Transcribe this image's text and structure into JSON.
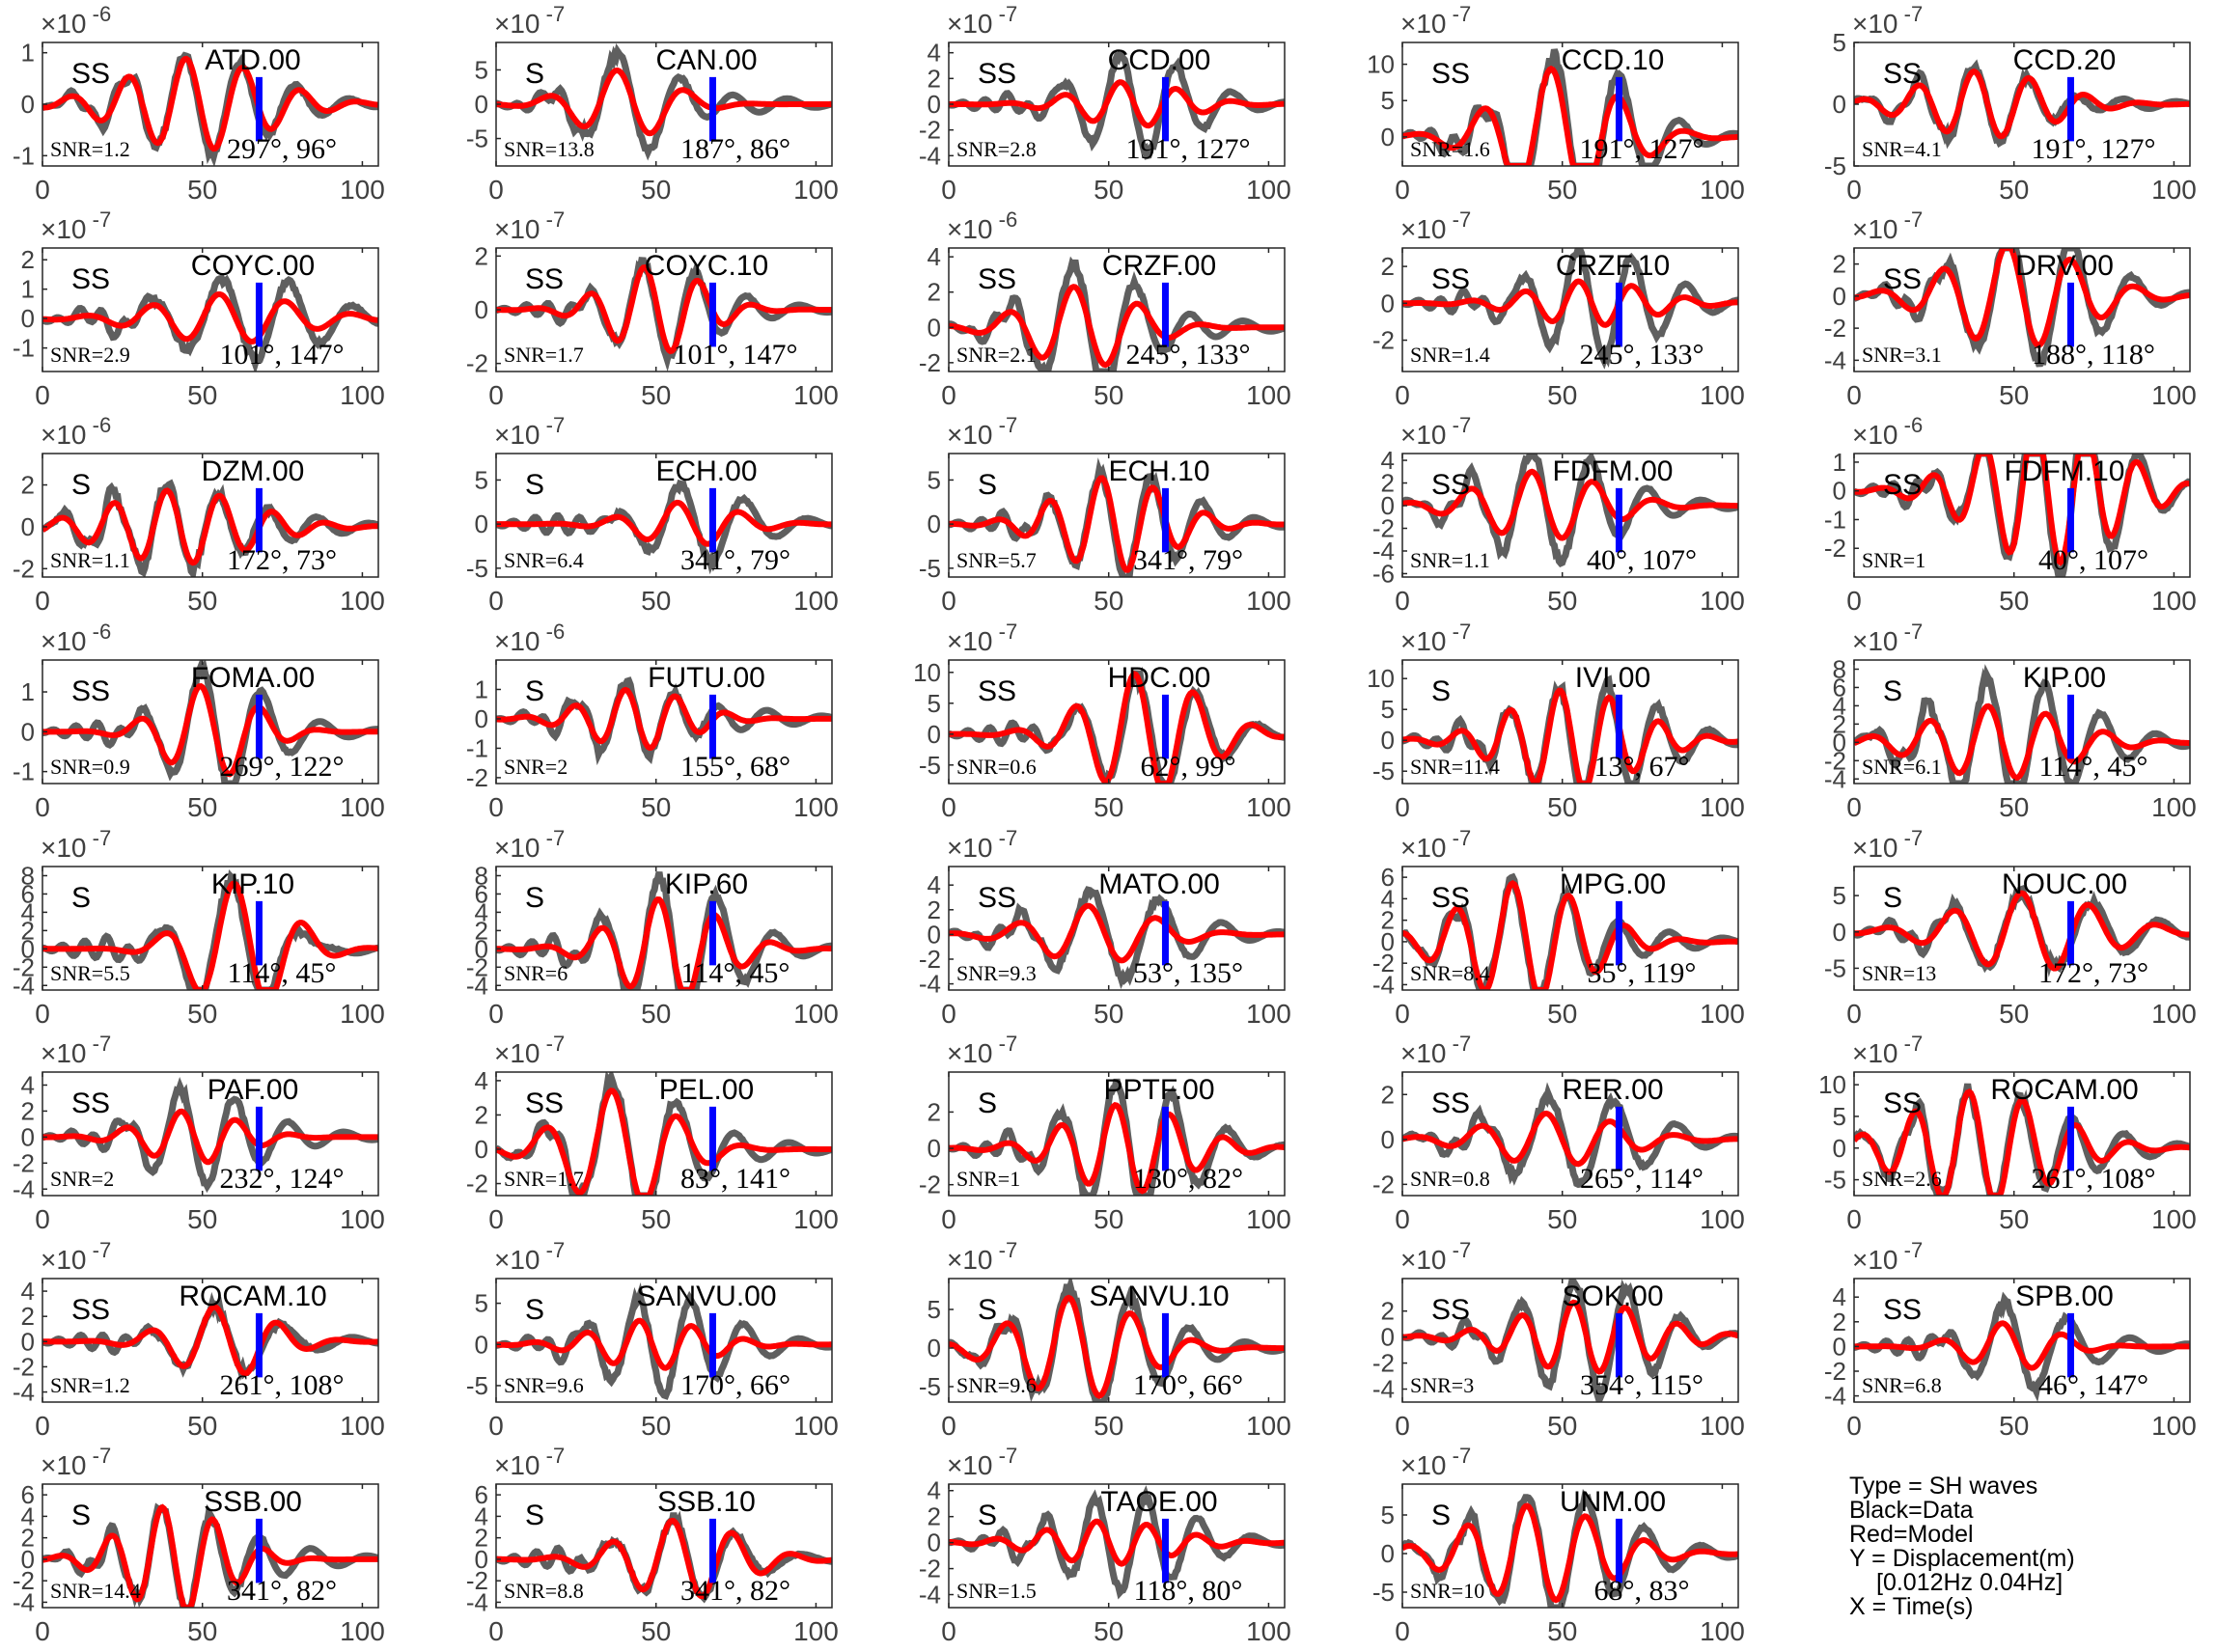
{
  "legend": {
    "type": "Type = SH waves",
    "black": "Black=Data",
    "red": "Red=Model",
    "y_label": "Y = Displacement(m)",
    "band": "[0.012Hz 0.04Hz]",
    "x_label": "X = Time(s)"
  },
  "colors": {
    "data": "#5f5f5f",
    "model": "#ff0000",
    "marker": "#0000ff",
    "axis": "#262626",
    "tick_label": "#404040"
  },
  "chart_data": [
    {
      "type": "line",
      "station": "ATD.00",
      "phase": "SS",
      "snr": "SNR=1.2",
      "az_dist": "297°, 96°",
      "exp": "-6",
      "ylim": [
        -1.2,
        1.2
      ],
      "yticks": [
        -1,
        0,
        1
      ]
    },
    {
      "type": "line",
      "station": "CAN.00",
      "phase": "S",
      "snr": "SNR=13.8",
      "az_dist": "187°, 86°",
      "exp": "-7",
      "ylim": [
        -9,
        9
      ],
      "yticks": [
        -5,
        0,
        5
      ]
    },
    {
      "type": "line",
      "station": "CCD.00",
      "phase": "SS",
      "snr": "SNR=2.8",
      "az_dist": "191°, 127°",
      "exp": "-7",
      "ylim": [
        -4.8,
        4.8
      ],
      "yticks": [
        -4,
        -2,
        0,
        2,
        4
      ]
    },
    {
      "type": "line",
      "station": "CCD.10",
      "phase": "SS",
      "snr": "SNR=1.6",
      "az_dist": "191°, 127°",
      "exp": "-7",
      "ylim": [
        -4,
        13
      ],
      "yticks": [
        0,
        5,
        10
      ]
    },
    {
      "type": "line",
      "station": "CCD.20",
      "phase": "SS",
      "snr": "SNR=4.1",
      "az_dist": "191°, 127°",
      "exp": "-7",
      "ylim": [
        -5,
        5
      ],
      "yticks": [
        -5,
        0,
        5
      ]
    },
    {
      "type": "line",
      "station": "COYC.00",
      "phase": "SS",
      "snr": "SNR=2.9",
      "az_dist": "101°, 147°",
      "exp": "-7",
      "ylim": [
        -1.8,
        2.4
      ],
      "yticks": [
        -1,
        0,
        1,
        2
      ]
    },
    {
      "type": "line",
      "station": "COYC.10",
      "phase": "SS",
      "snr": "SNR=1.7",
      "az_dist": "101°, 147°",
      "exp": "-7",
      "ylim": [
        -2.3,
        2.3
      ],
      "yticks": [
        -2,
        0,
        2
      ]
    },
    {
      "type": "line",
      "station": "CRZF.00",
      "phase": "SS",
      "snr": "SNR=2.1",
      "az_dist": "245°, 133°",
      "exp": "-6",
      "ylim": [
        -2.5,
        4.5
      ],
      "yticks": [
        -2,
        0,
        2,
        4
      ]
    },
    {
      "type": "line",
      "station": "CRZF.10",
      "phase": "SS",
      "snr": "SNR=1.4",
      "az_dist": "245°, 133°",
      "exp": "-7",
      "ylim": [
        -3.7,
        3
      ],
      "yticks": [
        -2,
        0,
        2
      ]
    },
    {
      "type": "line",
      "station": "DRV.00",
      "phase": "SS",
      "snr": "SNR=3.1",
      "az_dist": "188°, 118°",
      "exp": "-7",
      "ylim": [
        -4.7,
        3
      ],
      "yticks": [
        -4,
        -2,
        0,
        2
      ]
    },
    {
      "type": "line",
      "station": "DZM.00",
      "phase": "S",
      "snr": "SNR=1.1",
      "az_dist": "172°, 73°",
      "exp": "-6",
      "ylim": [
        -2.4,
        3.5
      ],
      "yticks": [
        -2,
        0,
        2
      ]
    },
    {
      "type": "line",
      "station": "ECH.00",
      "phase": "S",
      "snr": "SNR=6.4",
      "az_dist": "341°, 79°",
      "exp": "-7",
      "ylim": [
        -6,
        8
      ],
      "yticks": [
        -5,
        0,
        5
      ]
    },
    {
      "type": "line",
      "station": "ECH.10",
      "phase": "S",
      "snr": "SNR=5.7",
      "az_dist": "341°, 79°",
      "exp": "-7",
      "ylim": [
        -6,
        8
      ],
      "yticks": [
        -5,
        0,
        5
      ]
    },
    {
      "type": "line",
      "station": "FDFM.00",
      "phase": "SS",
      "snr": "SNR=1.1",
      "az_dist": "40°, 107°",
      "exp": "-7",
      "ylim": [
        -6.3,
        4.6
      ],
      "yticks": [
        -6,
        -4,
        -2,
        0,
        2,
        4
      ]
    },
    {
      "type": "line",
      "station": "FDFM.10",
      "phase": "SS",
      "snr": "SNR=1",
      "az_dist": "40°, 107°",
      "exp": "-6",
      "ylim": [
        -3,
        1.3
      ],
      "yticks": [
        -2,
        -1,
        0,
        1
      ]
    },
    {
      "type": "line",
      "station": "FOMA.00",
      "phase": "SS",
      "snr": "SNR=0.9",
      "az_dist": "269°, 122°",
      "exp": "-6",
      "ylim": [
        -1.3,
        1.8
      ],
      "yticks": [
        -1,
        0,
        1
      ]
    },
    {
      "type": "line",
      "station": "FUTU.00",
      "phase": "S",
      "snr": "SNR=2",
      "az_dist": "155°, 68°",
      "exp": "-6",
      "ylim": [
        -2.2,
        2
      ],
      "yticks": [
        -2,
        -1,
        0,
        1
      ]
    },
    {
      "type": "line",
      "station": "HDC.00",
      "phase": "SS",
      "snr": "SNR=0.6",
      "az_dist": "62°, 99°",
      "exp": "-7",
      "ylim": [
        -8,
        12
      ],
      "yticks": [
        -5,
        0,
        5,
        10
      ]
    },
    {
      "type": "line",
      "station": "IVI.00",
      "phase": "S",
      "snr": "SNR=11.4",
      "az_dist": "13°, 67°",
      "exp": "-7",
      "ylim": [
        -7,
        13
      ],
      "yticks": [
        -5,
        0,
        5,
        10
      ]
    },
    {
      "type": "line",
      "station": "KIP.00",
      "phase": "S",
      "snr": "SNR=6.1",
      "az_dist": "114°, 45°",
      "exp": "-7",
      "ylim": [
        -4.5,
        9
      ],
      "yticks": [
        -4,
        -2,
        0,
        2,
        4,
        6,
        8
      ]
    },
    {
      "type": "line",
      "station": "KIP.10",
      "phase": "S",
      "snr": "SNR=5.5",
      "az_dist": "114°, 45°",
      "exp": "-7",
      "ylim": [
        -4.5,
        9
      ],
      "yticks": [
        -4,
        -2,
        0,
        2,
        4,
        6,
        8
      ]
    },
    {
      "type": "line",
      "station": "KIP.60",
      "phase": "S",
      "snr": "SNR=6",
      "az_dist": "114°, 45°",
      "exp": "-7",
      "ylim": [
        -4.5,
        9
      ],
      "yticks": [
        -4,
        -2,
        0,
        2,
        4,
        6,
        8
      ]
    },
    {
      "type": "line",
      "station": "MATO.00",
      "phase": "SS",
      "snr": "SNR=9.3",
      "az_dist": "53°, 135°",
      "exp": "-7",
      "ylim": [
        -4.5,
        5.5
      ],
      "yticks": [
        -4,
        -2,
        0,
        2,
        4
      ]
    },
    {
      "type": "line",
      "station": "MPG.00",
      "phase": "SS",
      "snr": "SNR=8.4",
      "az_dist": "35°, 119°",
      "exp": "-7",
      "ylim": [
        -4.5,
        7
      ],
      "yticks": [
        -4,
        -2,
        0,
        2,
        4,
        6
      ]
    },
    {
      "type": "line",
      "station": "NOUC.00",
      "phase": "S",
      "snr": "SNR=13",
      "az_dist": "172°, 73°",
      "exp": "-7",
      "ylim": [
        -8,
        9
      ],
      "yticks": [
        -5,
        0,
        5
      ]
    },
    {
      "type": "line",
      "station": "PAF.00",
      "phase": "SS",
      "snr": "SNR=2",
      "az_dist": "232°, 124°",
      "exp": "-7",
      "ylim": [
        -4.5,
        5
      ],
      "yticks": [
        -4,
        -2,
        0,
        2,
        4
      ]
    },
    {
      "type": "line",
      "station": "PEL.00",
      "phase": "SS",
      "snr": "SNR=1.7",
      "az_dist": "83°, 141°",
      "exp": "-7",
      "ylim": [
        -2.7,
        4.5
      ],
      "yticks": [
        -2,
        0,
        2,
        4
      ]
    },
    {
      "type": "line",
      "station": "PPTF.00",
      "phase": "S",
      "snr": "SNR=1",
      "az_dist": "130°, 82°",
      "exp": "-7",
      "ylim": [
        -2.6,
        4.2
      ],
      "yticks": [
        -2,
        0,
        2
      ]
    },
    {
      "type": "line",
      "station": "RER.00",
      "phase": "SS",
      "snr": "SNR=0.8",
      "az_dist": "265°, 114°",
      "exp": "-7",
      "ylim": [
        -2.5,
        3
      ],
      "yticks": [
        -2,
        0,
        2
      ]
    },
    {
      "type": "line",
      "station": "ROCAM.00",
      "phase": "SS",
      "snr": "SNR=2.6",
      "az_dist": "261°, 108°",
      "exp": "-7",
      "ylim": [
        -7.5,
        12
      ],
      "yticks": [
        -5,
        0,
        5,
        10
      ]
    },
    {
      "type": "line",
      "station": "ROCAM.10",
      "phase": "SS",
      "snr": "SNR=1.2",
      "az_dist": "261°, 108°",
      "exp": "-7",
      "ylim": [
        -4.8,
        5
      ],
      "yticks": [
        -4,
        -2,
        0,
        2,
        4
      ]
    },
    {
      "type": "line",
      "station": "SANVU.00",
      "phase": "S",
      "snr": "SNR=9.6",
      "az_dist": "170°, 66°",
      "exp": "-7",
      "ylim": [
        -7,
        8
      ],
      "yticks": [
        -5,
        0,
        5
      ]
    },
    {
      "type": "line",
      "station": "SANVU.10",
      "phase": "S",
      "snr": "SNR=9.6",
      "az_dist": "170°, 66°",
      "exp": "-7",
      "ylim": [
        -7,
        9
      ],
      "yticks": [
        -5,
        0,
        5
      ]
    },
    {
      "type": "line",
      "station": "SOK.00",
      "phase": "SS",
      "snr": "SNR=3",
      "az_dist": "354°, 115°",
      "exp": "-7",
      "ylim": [
        -5,
        4.5
      ],
      "yticks": [
        -4,
        -2,
        0,
        2
      ]
    },
    {
      "type": "line",
      "station": "SPB.00",
      "phase": "SS",
      "snr": "SNR=6.8",
      "az_dist": "46°, 147°",
      "exp": "-7",
      "ylim": [
        -4.5,
        5.5
      ],
      "yticks": [
        -4,
        -2,
        0,
        2,
        4
      ]
    },
    {
      "type": "line",
      "station": "SSB.00",
      "phase": "S",
      "snr": "SNR=14.4",
      "az_dist": "341°, 82°",
      "exp": "-7",
      "ylim": [
        -4.5,
        7
      ],
      "yticks": [
        -4,
        -2,
        0,
        2,
        4,
        6
      ]
    },
    {
      "type": "line",
      "station": "SSB.10",
      "phase": "S",
      "snr": "SNR=8.8",
      "az_dist": "341°, 82°",
      "exp": "-7",
      "ylim": [
        -4.5,
        7
      ],
      "yticks": [
        -4,
        -2,
        0,
        2,
        4,
        6
      ]
    },
    {
      "type": "line",
      "station": "TAOE.00",
      "phase": "S",
      "snr": "SNR=1.5",
      "az_dist": "118°, 80°",
      "exp": "-7",
      "ylim": [
        -5,
        4.5
      ],
      "yticks": [
        -4,
        -2,
        0,
        2,
        4
      ]
    },
    {
      "type": "line",
      "station": "UNM.00",
      "phase": "S",
      "snr": "SNR=10",
      "az_dist": "68°, 83°",
      "exp": "-7",
      "ylim": [
        -7,
        9
      ],
      "yticks": [
        -5,
        0,
        5
      ]
    }
  ]
}
